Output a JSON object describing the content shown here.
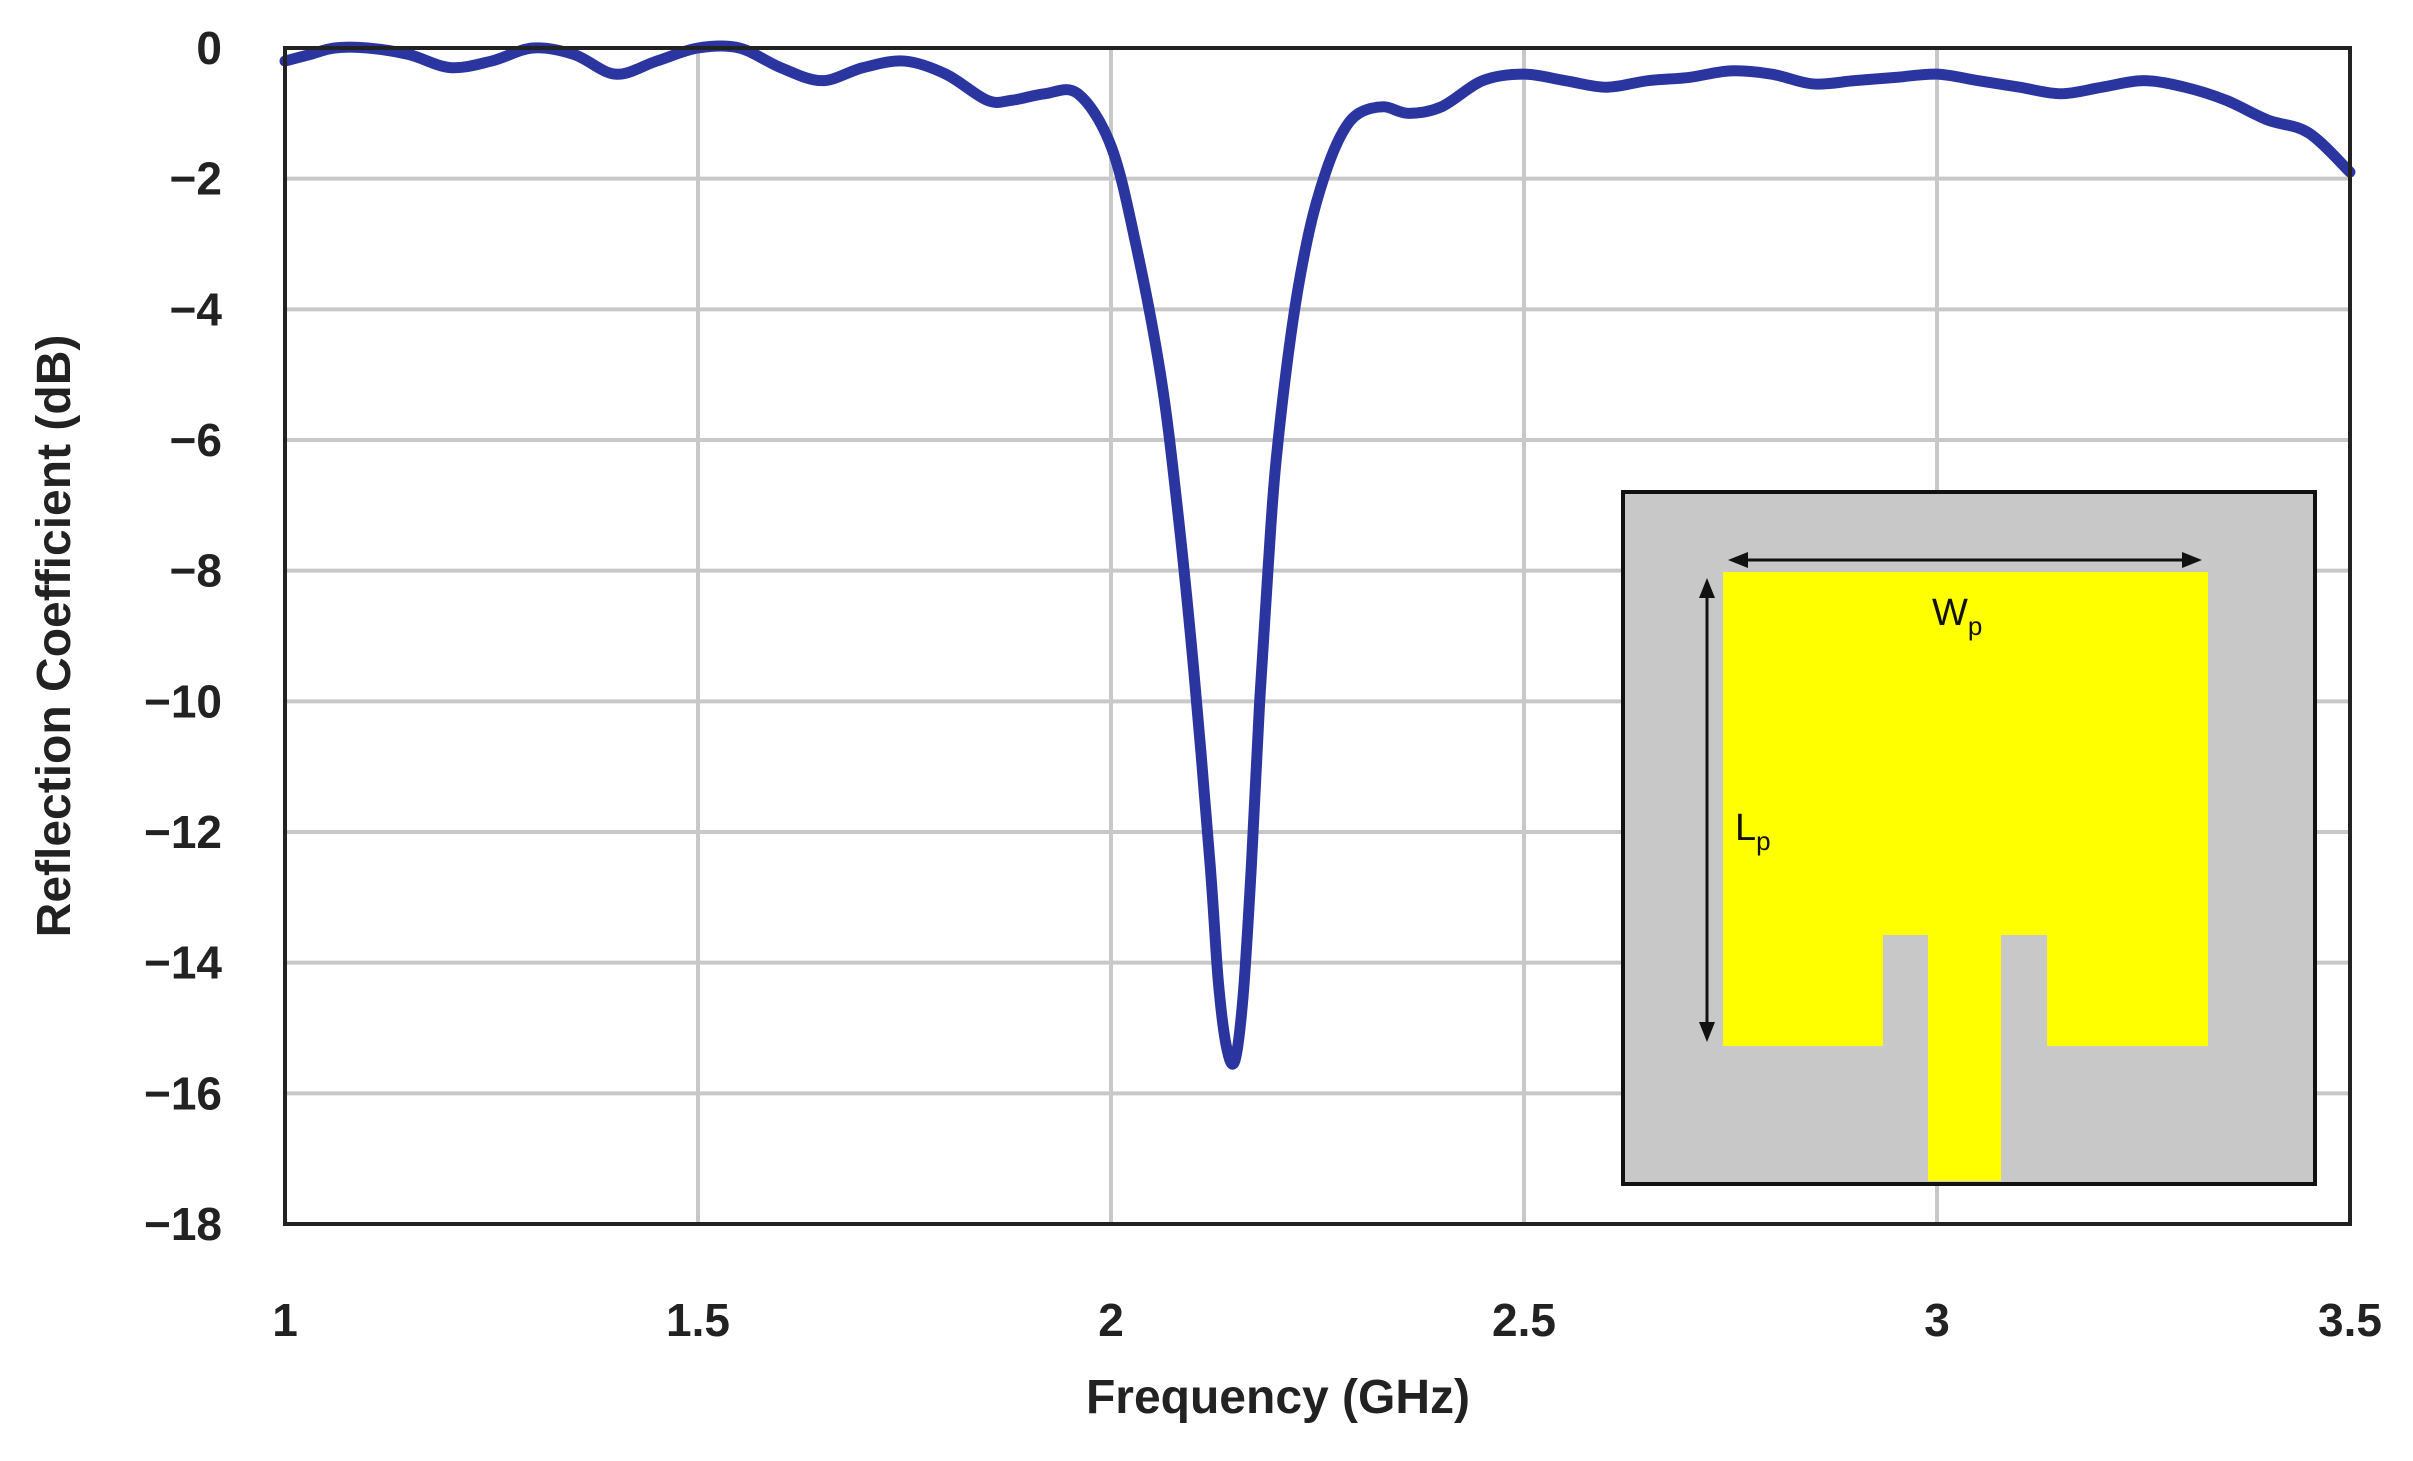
{
  "chart_data": {
    "type": "line",
    "title": "",
    "xlabel": "Frequency (GHz)",
    "ylabel": "Reflection Coefficient (dB)",
    "xlim": [
      1,
      3.5
    ],
    "ylim": [
      -18,
      0
    ],
    "xticks": [
      1,
      1.5,
      2,
      2.5,
      3,
      3.5
    ],
    "xtick_labels": [
      "1",
      "1.5",
      "2",
      "2.5",
      "3",
      "3.5"
    ],
    "yticks": [
      0,
      -2,
      -4,
      -6,
      -8,
      -10,
      -12,
      -14,
      -16,
      -18
    ],
    "ytick_labels": [
      "0",
      "−2",
      "−4",
      "−6",
      "−8",
      "−10",
      "−12",
      "−14",
      "−16",
      "−18"
    ],
    "grid": true,
    "legend": "none",
    "series": [
      {
        "color": "#2b35a0",
        "x": [
          1.0,
          1.03,
          1.06,
          1.1,
          1.15,
          1.2,
          1.25,
          1.3,
          1.35,
          1.4,
          1.45,
          1.5,
          1.55,
          1.6,
          1.65,
          1.7,
          1.75,
          1.8,
          1.85,
          1.88,
          1.92,
          1.96,
          2.0,
          2.03,
          2.06,
          2.08,
          2.1,
          2.12,
          2.13,
          2.14,
          2.15,
          2.16,
          2.17,
          2.18,
          2.19,
          2.2,
          2.22,
          2.24,
          2.26,
          2.28,
          2.3,
          2.33,
          2.36,
          2.4,
          2.45,
          2.5,
          2.55,
          2.6,
          2.65,
          2.7,
          2.75,
          2.8,
          2.85,
          2.9,
          2.95,
          3.0,
          3.05,
          3.1,
          3.15,
          3.2,
          3.25,
          3.3,
          3.35,
          3.4,
          3.45,
          3.5
        ],
        "y": [
          -0.2,
          -0.1,
          0.0,
          0.0,
          -0.1,
          -0.3,
          -0.2,
          0.0,
          -0.1,
          -0.4,
          -0.2,
          0.0,
          0.0,
          -0.3,
          -0.5,
          -0.3,
          -0.2,
          -0.4,
          -0.8,
          -0.8,
          -0.7,
          -0.7,
          -1.5,
          -3.0,
          -5.0,
          -7.0,
          -9.5,
          -12.5,
          -14.3,
          -15.3,
          -15.5,
          -14.5,
          -12.5,
          -10.0,
          -8.0,
          -6.3,
          -4.2,
          -2.8,
          -1.9,
          -1.3,
          -1.0,
          -0.9,
          -1.0,
          -0.9,
          -0.5,
          -0.4,
          -0.5,
          -0.6,
          -0.5,
          -0.45,
          -0.35,
          -0.4,
          -0.55,
          -0.5,
          -0.45,
          -0.4,
          -0.5,
          -0.6,
          -0.7,
          -0.6,
          -0.5,
          -0.6,
          -0.8,
          -1.1,
          -1.3,
          -1.9
        ]
      }
    ]
  },
  "inset": {
    "width_label": "W",
    "width_sub": "p",
    "length_label": "L",
    "length_sub": "p",
    "substrate_color": "#c8c8c8",
    "patch_color": "#ffff00"
  }
}
